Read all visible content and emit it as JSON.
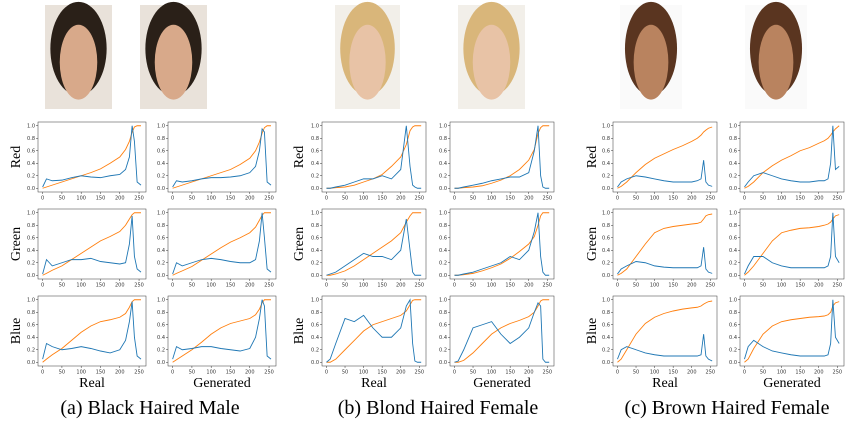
{
  "x": [
    0,
    10,
    25,
    50,
    75,
    100,
    125,
    150,
    175,
    200,
    215,
    225,
    232,
    238,
    245,
    255
  ],
  "xlim": [
    -12,
    268
  ],
  "ylim": [
    -0.06,
    1.06
  ],
  "xticks": [
    0,
    50,
    100,
    150,
    200,
    250
  ],
  "yticks": [
    {
      "value": 0,
      "label": "0.0"
    },
    0.2,
    0.4,
    0.6,
    0.8,
    {
      "value": 1,
      "label": "1.0"
    }
  ],
  "row_labels": [
    "Red",
    "Green",
    "Blue"
  ],
  "col_labels": [
    "Real",
    "Generated"
  ],
  "colors": {
    "histogram": "#1f77b4",
    "cumulative": "#ff7f0e"
  },
  "panels": [
    {
      "caption": "(a) Black Haired Male",
      "charts": [
        [
          {
            "histogram": [
              0.02,
              0.15,
              0.12,
              0.13,
              0.17,
              0.2,
              0.18,
              0.17,
              0.2,
              0.22,
              0.3,
              0.5,
              1.0,
              0.75,
              0.1,
              0.05
            ],
            "cumulative": [
              0,
              0.02,
              0.05,
              0.1,
              0.15,
              0.2,
              0.25,
              0.31,
              0.4,
              0.5,
              0.62,
              0.75,
              0.9,
              0.98,
              1,
              1
            ]
          },
          {
            "histogram": [
              0.02,
              0.12,
              0.1,
              0.12,
              0.15,
              0.17,
              0.17,
              0.18,
              0.2,
              0.25,
              0.35,
              0.6,
              0.95,
              0.9,
              0.1,
              0.05
            ],
            "cumulative": [
              0,
              0.02,
              0.05,
              0.1,
              0.15,
              0.2,
              0.25,
              0.3,
              0.38,
              0.48,
              0.6,
              0.74,
              0.88,
              0.97,
              1,
              1
            ]
          }
        ],
        [
          {
            "histogram": [
              0.02,
              0.25,
              0.15,
              0.2,
              0.25,
              0.25,
              0.27,
              0.22,
              0.2,
              0.18,
              0.2,
              0.5,
              0.95,
              0.3,
              0.1,
              0.05
            ],
            "cumulative": [
              0,
              0.03,
              0.08,
              0.15,
              0.25,
              0.35,
              0.45,
              0.55,
              0.62,
              0.7,
              0.8,
              0.9,
              0.97,
              1,
              1,
              1
            ]
          },
          {
            "histogram": [
              0.02,
              0.2,
              0.15,
              0.2,
              0.25,
              0.27,
              0.25,
              0.22,
              0.2,
              0.2,
              0.25,
              0.55,
              1.0,
              0.6,
              0.1,
              0.05
            ],
            "cumulative": [
              0,
              0.03,
              0.07,
              0.14,
              0.24,
              0.34,
              0.44,
              0.53,
              0.6,
              0.68,
              0.77,
              0.88,
              0.96,
              1,
              1,
              1
            ]
          }
        ],
        [
          {
            "histogram": [
              0.05,
              0.3,
              0.25,
              0.2,
              0.22,
              0.25,
              0.22,
              0.18,
              0.15,
              0.2,
              0.35,
              0.65,
              0.97,
              0.4,
              0.1,
              0.05
            ],
            "cumulative": [
              0,
              0.05,
              0.12,
              0.22,
              0.35,
              0.48,
              0.58,
              0.65,
              0.68,
              0.72,
              0.78,
              0.88,
              0.97,
              1,
              1,
              1
            ]
          },
          {
            "histogram": [
              0.05,
              0.25,
              0.2,
              0.22,
              0.25,
              0.25,
              0.22,
              0.2,
              0.18,
              0.22,
              0.4,
              0.7,
              1.0,
              0.9,
              0.1,
              0.05
            ],
            "cumulative": [
              0,
              0.04,
              0.1,
              0.2,
              0.32,
              0.45,
              0.55,
              0.62,
              0.66,
              0.7,
              0.76,
              0.85,
              0.95,
              1,
              1,
              1
            ]
          }
        ]
      ]
    },
    {
      "caption": "(b) Blond Haired Female",
      "charts": [
        [
          {
            "histogram": [
              0,
              0,
              0.02,
              0.05,
              0.1,
              0.15,
              0.15,
              0.2,
              0.15,
              0.3,
              1.0,
              0.35,
              0.05,
              0.02,
              0,
              0
            ],
            "cumulative": [
              0,
              0,
              0.01,
              0.02,
              0.05,
              0.1,
              0.15,
              0.22,
              0.35,
              0.5,
              0.7,
              0.92,
              0.98,
              1,
              1,
              1
            ]
          },
          {
            "histogram": [
              0,
              0,
              0.02,
              0.05,
              0.08,
              0.12,
              0.15,
              0.18,
              0.18,
              0.25,
              0.6,
              1.0,
              0.2,
              0.02,
              0,
              0
            ],
            "cumulative": [
              0,
              0,
              0.01,
              0.02,
              0.04,
              0.08,
              0.13,
              0.2,
              0.3,
              0.45,
              0.62,
              0.88,
              0.97,
              1,
              1,
              1
            ]
          }
        ],
        [
          {
            "histogram": [
              0,
              0.02,
              0.05,
              0.15,
              0.25,
              0.35,
              0.3,
              0.3,
              0.25,
              0.4,
              0.9,
              0.4,
              0.05,
              0,
              0,
              0
            ],
            "cumulative": [
              0,
              0,
              0.02,
              0.07,
              0.15,
              0.25,
              0.35,
              0.45,
              0.55,
              0.68,
              0.85,
              0.95,
              1,
              1,
              1,
              1
            ]
          },
          {
            "histogram": [
              0,
              0,
              0.02,
              0.05,
              0.1,
              0.15,
              0.2,
              0.3,
              0.25,
              0.4,
              0.7,
              1.0,
              0.3,
              0.05,
              0,
              0
            ],
            "cumulative": [
              0,
              0,
              0.01,
              0.03,
              0.07,
              0.12,
              0.18,
              0.27,
              0.38,
              0.5,
              0.62,
              0.8,
              0.95,
              1,
              1,
              1
            ]
          }
        ],
        [
          {
            "histogram": [
              0,
              0.05,
              0.3,
              0.7,
              0.65,
              0.75,
              0.55,
              0.4,
              0.4,
              0.55,
              0.9,
              1.0,
              0.3,
              0.02,
              0,
              0
            ],
            "cumulative": [
              0,
              0,
              0.05,
              0.2,
              0.35,
              0.5,
              0.6,
              0.65,
              0.7,
              0.75,
              0.82,
              0.92,
              0.99,
              1,
              1,
              1
            ]
          },
          {
            "histogram": [
              0,
              0.02,
              0.2,
              0.55,
              0.6,
              0.65,
              0.45,
              0.3,
              0.4,
              0.55,
              0.8,
              0.95,
              0.9,
              0.05,
              0,
              0
            ],
            "cumulative": [
              0,
              0,
              0.03,
              0.15,
              0.3,
              0.45,
              0.55,
              0.62,
              0.67,
              0.73,
              0.8,
              0.9,
              0.98,
              1,
              1,
              1
            ]
          }
        ]
      ]
    },
    {
      "caption": "(c) Brown Haired Female",
      "charts": [
        [
          {
            "histogram": [
              0.02,
              0.1,
              0.15,
              0.2,
              0.18,
              0.15,
              0.12,
              0.1,
              0.1,
              0.1,
              0.12,
              0.15,
              0.45,
              0.1,
              0.05,
              0.03
            ],
            "cumulative": [
              0,
              0.03,
              0.1,
              0.25,
              0.38,
              0.48,
              0.55,
              0.62,
              0.68,
              0.75,
              0.8,
              0.85,
              0.9,
              0.93,
              0.96,
              0.98
            ]
          },
          {
            "histogram": [
              0.02,
              0.1,
              0.2,
              0.25,
              0.2,
              0.15,
              0.12,
              0.1,
              0.1,
              0.12,
              0.12,
              0.15,
              0.4,
              1.0,
              0.3,
              0.35
            ],
            "cumulative": [
              0,
              0.03,
              0.1,
              0.25,
              0.36,
              0.45,
              0.52,
              0.6,
              0.65,
              0.72,
              0.76,
              0.8,
              0.85,
              0.9,
              0.95,
              1
            ]
          }
        ],
        [
          {
            "histogram": [
              0.02,
              0.1,
              0.15,
              0.22,
              0.2,
              0.15,
              0.13,
              0.12,
              0.12,
              0.12,
              0.12,
              0.15,
              0.45,
              0.1,
              0.05,
              0.03
            ],
            "cumulative": [
              0,
              0.03,
              0.1,
              0.3,
              0.5,
              0.68,
              0.75,
              0.78,
              0.8,
              0.82,
              0.83,
              0.85,
              0.9,
              0.95,
              0.97,
              0.98
            ]
          },
          {
            "histogram": [
              0.02,
              0.15,
              0.3,
              0.3,
              0.2,
              0.15,
              0.12,
              0.12,
              0.12,
              0.12,
              0.12,
              0.15,
              0.3,
              1.0,
              0.3,
              0.2
            ],
            "cumulative": [
              0,
              0.05,
              0.15,
              0.35,
              0.55,
              0.68,
              0.72,
              0.75,
              0.76,
              0.78,
              0.8,
              0.82,
              0.85,
              0.9,
              0.95,
              0.97
            ]
          }
        ],
        [
          {
            "histogram": [
              0.05,
              0.2,
              0.25,
              0.2,
              0.15,
              0.12,
              0.1,
              0.1,
              0.1,
              0.1,
              0.1,
              0.12,
              0.45,
              0.1,
              0.05,
              0.02
            ],
            "cumulative": [
              0,
              0.05,
              0.2,
              0.45,
              0.62,
              0.72,
              0.78,
              0.82,
              0.85,
              0.87,
              0.88,
              0.9,
              0.93,
              0.95,
              0.97,
              0.98
            ]
          },
          {
            "histogram": [
              0.05,
              0.25,
              0.35,
              0.25,
              0.18,
              0.15,
              0.12,
              0.1,
              0.1,
              0.1,
              0.1,
              0.12,
              0.3,
              1.0,
              0.4,
              0.3
            ],
            "cumulative": [
              0,
              0.05,
              0.22,
              0.45,
              0.58,
              0.65,
              0.68,
              0.7,
              0.72,
              0.73,
              0.74,
              0.76,
              0.8,
              0.9,
              0.95,
              0.97
            ]
          }
        ]
      ]
    }
  ]
}
